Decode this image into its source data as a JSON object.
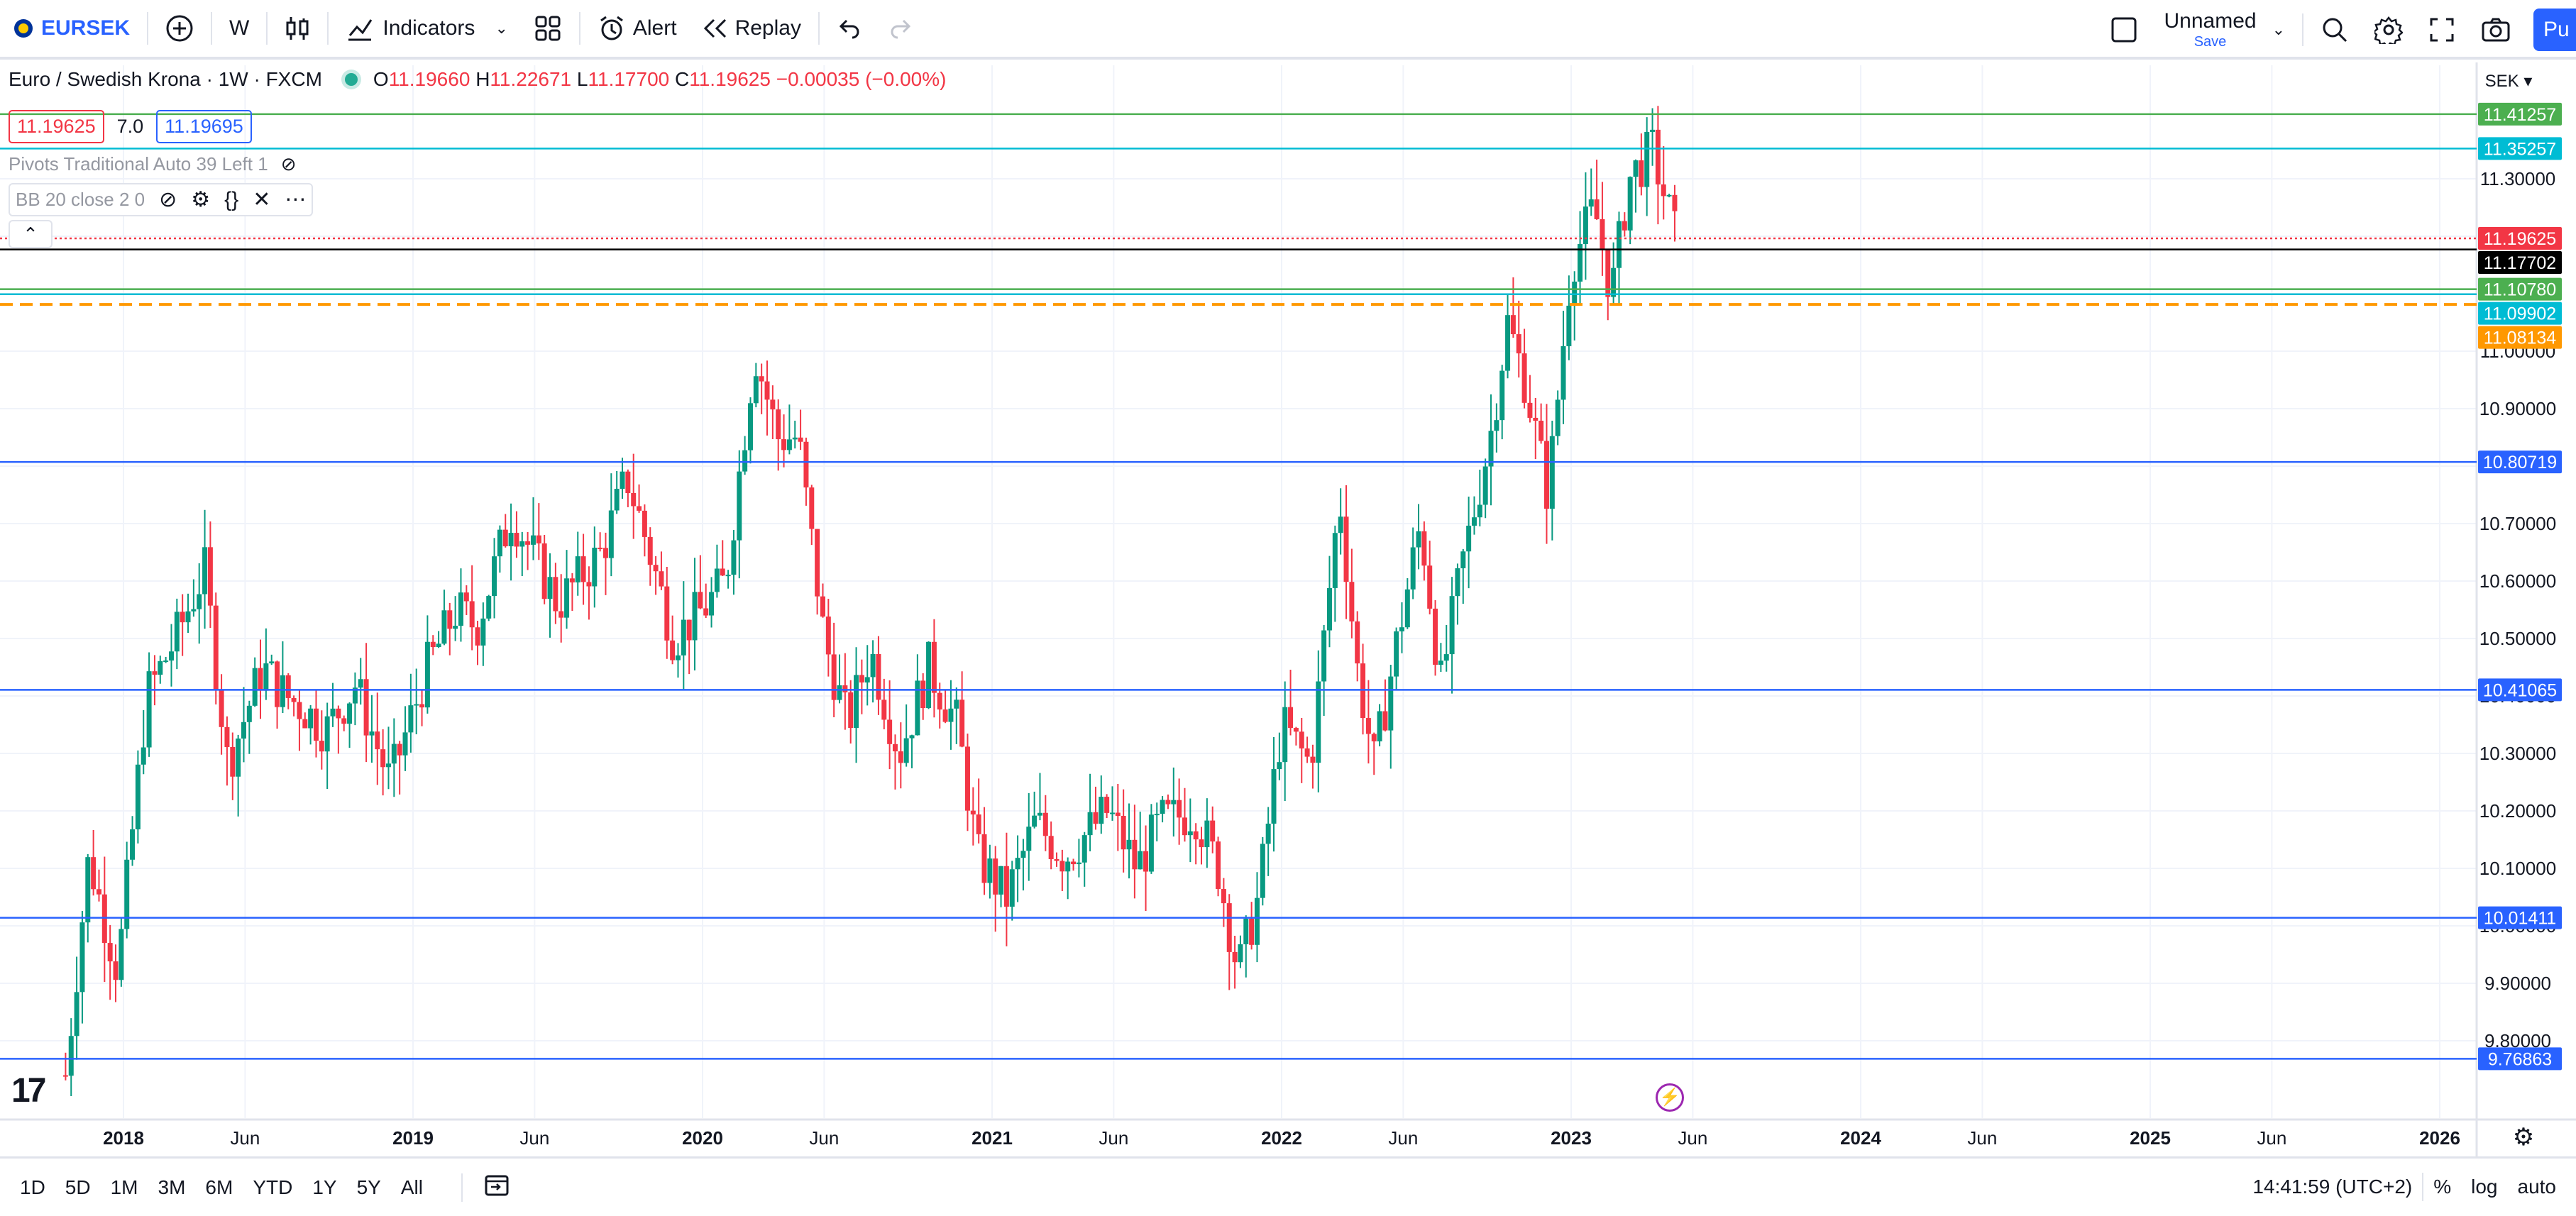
{
  "toolbar": {
    "symbol": "EURSEK",
    "interval": "W",
    "indicators_label": "Indicators",
    "alert_label": "Alert",
    "replay_label": "Replay",
    "layout_name": "Unnamed",
    "layout_save": "Save",
    "publish_label": "Pu"
  },
  "legend": {
    "title": "Euro / Swedish Krona · 1W · FXCM",
    "o_label": "O",
    "o": "11.19660",
    "h_label": "H",
    "h": "11.22671",
    "l_label": "L",
    "l": "11.17700",
    "c_label": "C",
    "c": "11.19625",
    "change": "−0.00035 (−0.00%)",
    "bid": "11.19625",
    "spread": "7.0",
    "ask": "11.19695",
    "indicator1": "Pivots Traditional Auto 39 Left 1",
    "indicator2": "BB 20 close 2 0"
  },
  "currency": "SEK ▾",
  "colors": {
    "up": "#089981",
    "down": "#f23645",
    "accent": "#2962ff"
  },
  "chart_data": {
    "type": "candlestick",
    "title": "Euro / Swedish Krona · 1W · FXCM",
    "y_range": [
      9.75,
      11.48
    ],
    "x_range": [
      2017.72,
      2026.5
    ],
    "price_ticks": [
      "11.30000",
      "11.20000",
      "11.10000",
      "11.00000",
      "10.90000",
      "10.80000",
      "10.70000",
      "10.60000",
      "10.50000",
      "10.40000",
      "10.30000",
      "10.20000",
      "10.10000",
      "10.00000",
      "9.90000",
      "9.80000"
    ],
    "time_ticks": [
      {
        "label": "2018",
        "bold": true
      },
      {
        "label": "Jun",
        "bold": false
      },
      {
        "label": "2019",
        "bold": true
      },
      {
        "label": "Jun",
        "bold": false
      },
      {
        "label": "2020",
        "bold": true
      },
      {
        "label": "Jun",
        "bold": false
      },
      {
        "label": "2021",
        "bold": true
      },
      {
        "label": "Jun",
        "bold": false
      },
      {
        "label": "2022",
        "bold": true
      },
      {
        "label": "Jun",
        "bold": false
      },
      {
        "label": "2023",
        "bold": true
      },
      {
        "label": "Jun",
        "bold": false
      },
      {
        "label": "2024",
        "bold": true
      },
      {
        "label": "Jun",
        "bold": false
      },
      {
        "label": "2025",
        "bold": true
      },
      {
        "label": "Jun",
        "bold": false
      },
      {
        "label": "2026",
        "bold": true
      }
    ],
    "time_tick_values": [
      2018.0,
      2018.42,
      2019.0,
      2019.42,
      2020.0,
      2020.42,
      2021.0,
      2021.42,
      2022.0,
      2022.42,
      2023.0,
      2023.42,
      2024.0,
      2024.42,
      2025.0,
      2025.42,
      2026.0
    ],
    "horizontal_lines": [
      {
        "price": 11.41257,
        "label": "11.41257",
        "color": "#4caf50",
        "style": "solid"
      },
      {
        "price": 11.35257,
        "label": "11.35257",
        "color": "#00bcd4",
        "style": "solid"
      },
      {
        "price": 11.19625,
        "label": "11.19625",
        "color": "#f23645",
        "style": "dotted"
      },
      {
        "price": 11.17702,
        "label": "11.17702",
        "color": "#000000",
        "style": "solid"
      },
      {
        "price": 11.1078,
        "label": "11.10780",
        "color": "#4caf50",
        "style": "solid"
      },
      {
        "price": 11.09902,
        "label": "11.09902",
        "color": "#00bcd4",
        "style": "solid"
      },
      {
        "price": 11.08134,
        "label": "11.08134",
        "color": "#ff9800",
        "style": "dashed"
      },
      {
        "price": 10.80719,
        "label": "10.80719",
        "color": "#2962ff",
        "style": "solid"
      },
      {
        "price": 10.41065,
        "label": "10.41065",
        "color": "#2962ff",
        "style": "solid"
      },
      {
        "price": 10.01411,
        "label": "10.01411",
        "color": "#2962ff",
        "style": "solid"
      },
      {
        "price": 9.76863,
        "label": "9.76863",
        "color": "#2962ff",
        "style": "solid"
      }
    ],
    "anchors": [
      [
        2017.8,
        9.74
      ],
      [
        2017.88,
        10.12
      ],
      [
        2017.98,
        9.92
      ],
      [
        2018.08,
        10.4
      ],
      [
        2018.18,
        10.5
      ],
      [
        2018.28,
        10.62
      ],
      [
        2018.36,
        10.28
      ],
      [
        2018.48,
        10.45
      ],
      [
        2018.56,
        10.4
      ],
      [
        2018.62,
        10.38
      ],
      [
        2018.7,
        10.34
      ],
      [
        2018.8,
        10.42
      ],
      [
        2018.92,
        10.25
      ],
      [
        2019.05,
        10.45
      ],
      [
        2019.15,
        10.55
      ],
      [
        2019.22,
        10.52
      ],
      [
        2019.34,
        10.72
      ],
      [
        2019.4,
        10.66
      ],
      [
        2019.5,
        10.56
      ],
      [
        2019.65,
        10.65
      ],
      [
        2019.74,
        10.78
      ],
      [
        2019.8,
        10.68
      ],
      [
        2019.9,
        10.5
      ],
      [
        2020.0,
        10.55
      ],
      [
        2020.08,
        10.6
      ],
      [
        2020.18,
        11.0
      ],
      [
        2020.26,
        10.85
      ],
      [
        2020.33,
        10.85
      ],
      [
        2020.42,
        10.5
      ],
      [
        2020.5,
        10.35
      ],
      [
        2020.58,
        10.48
      ],
      [
        2020.68,
        10.3
      ],
      [
        2020.78,
        10.45
      ],
      [
        2020.88,
        10.35
      ],
      [
        2020.95,
        10.12
      ],
      [
        2021.05,
        10.05
      ],
      [
        2021.15,
        10.18
      ],
      [
        2021.25,
        10.12
      ],
      [
        2021.4,
        10.2
      ],
      [
        2021.5,
        10.1
      ],
      [
        2021.58,
        10.18
      ],
      [
        2021.7,
        10.2
      ],
      [
        2021.78,
        10.1
      ],
      [
        2021.85,
        9.92
      ],
      [
        2021.92,
        10.05
      ],
      [
        2022.0,
        10.35
      ],
      [
        2022.1,
        10.28
      ],
      [
        2022.2,
        10.75
      ],
      [
        2022.26,
        10.45
      ],
      [
        2022.32,
        10.28
      ],
      [
        2022.4,
        10.5
      ],
      [
        2022.48,
        10.7
      ],
      [
        2022.55,
        10.42
      ],
      [
        2022.62,
        10.62
      ],
      [
        2022.72,
        10.85
      ],
      [
        2022.78,
        11.05
      ],
      [
        2022.84,
        10.95
      ],
      [
        2022.92,
        10.75
      ],
      [
        2023.0,
        11.15
      ],
      [
        2023.08,
        11.25
      ],
      [
        2023.14,
        11.1
      ],
      [
        2023.2,
        11.3
      ],
      [
        2023.28,
        11.35
      ],
      [
        2023.36,
        11.2
      ]
    ]
  },
  "bottom": {
    "ranges": [
      "1D",
      "5D",
      "1M",
      "3M",
      "6M",
      "YTD",
      "1Y",
      "5Y",
      "All"
    ],
    "clock": "14:41:59 (UTC+2)",
    "percent": "%",
    "log": "log",
    "auto": "auto"
  }
}
